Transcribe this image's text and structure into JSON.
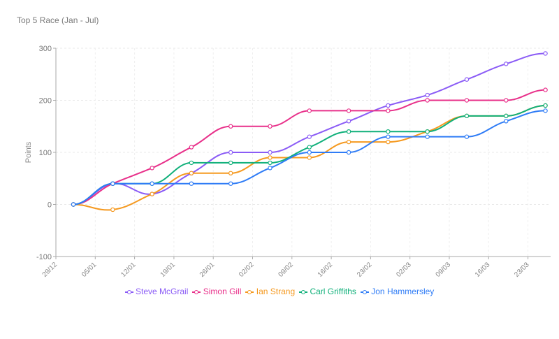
{
  "chart_data": {
    "type": "line",
    "title": "Top 5 Race (Jan - Jul)",
    "xlabel": "",
    "ylabel": "Points",
    "ylim": [
      -100,
      300
    ],
    "yticks": [
      -100,
      0,
      100,
      200,
      300
    ],
    "xtick_labels": [
      "29/12",
      "05/01",
      "12/01",
      "19/01",
      "26/01",
      "02/02",
      "09/02",
      "16/02",
      "23/02",
      "02/03",
      "09/03",
      "16/03",
      "23/03"
    ],
    "grid": true,
    "legend_position": "bottom",
    "point_count": 13,
    "series": [
      {
        "name": "Steve McGrail",
        "color": "#8b5cf6",
        "values": [
          0,
          40,
          20,
          60,
          100,
          100,
          130,
          160,
          190,
          210,
          240,
          270,
          290
        ]
      },
      {
        "name": "Simon Gill",
        "color": "#e8308a",
        "values": [
          0,
          40,
          70,
          110,
          150,
          150,
          180,
          180,
          180,
          200,
          200,
          200,
          220
        ]
      },
      {
        "name": "Ian Strang",
        "color": "#f5991f",
        "values": [
          0,
          -10,
          20,
          60,
          60,
          90,
          90,
          120,
          120,
          140,
          170,
          170,
          190
        ]
      },
      {
        "name": "Carl Griffiths",
        "color": "#10b07a",
        "values": [
          0,
          40,
          40,
          80,
          80,
          80,
          110,
          140,
          140,
          140,
          170,
          170,
          190
        ]
      },
      {
        "name": "Jon Hammersley",
        "color": "#2f7cf6",
        "values": [
          0,
          40,
          40,
          40,
          40,
          70,
          100,
          100,
          130,
          130,
          130,
          160,
          180
        ]
      }
    ]
  }
}
